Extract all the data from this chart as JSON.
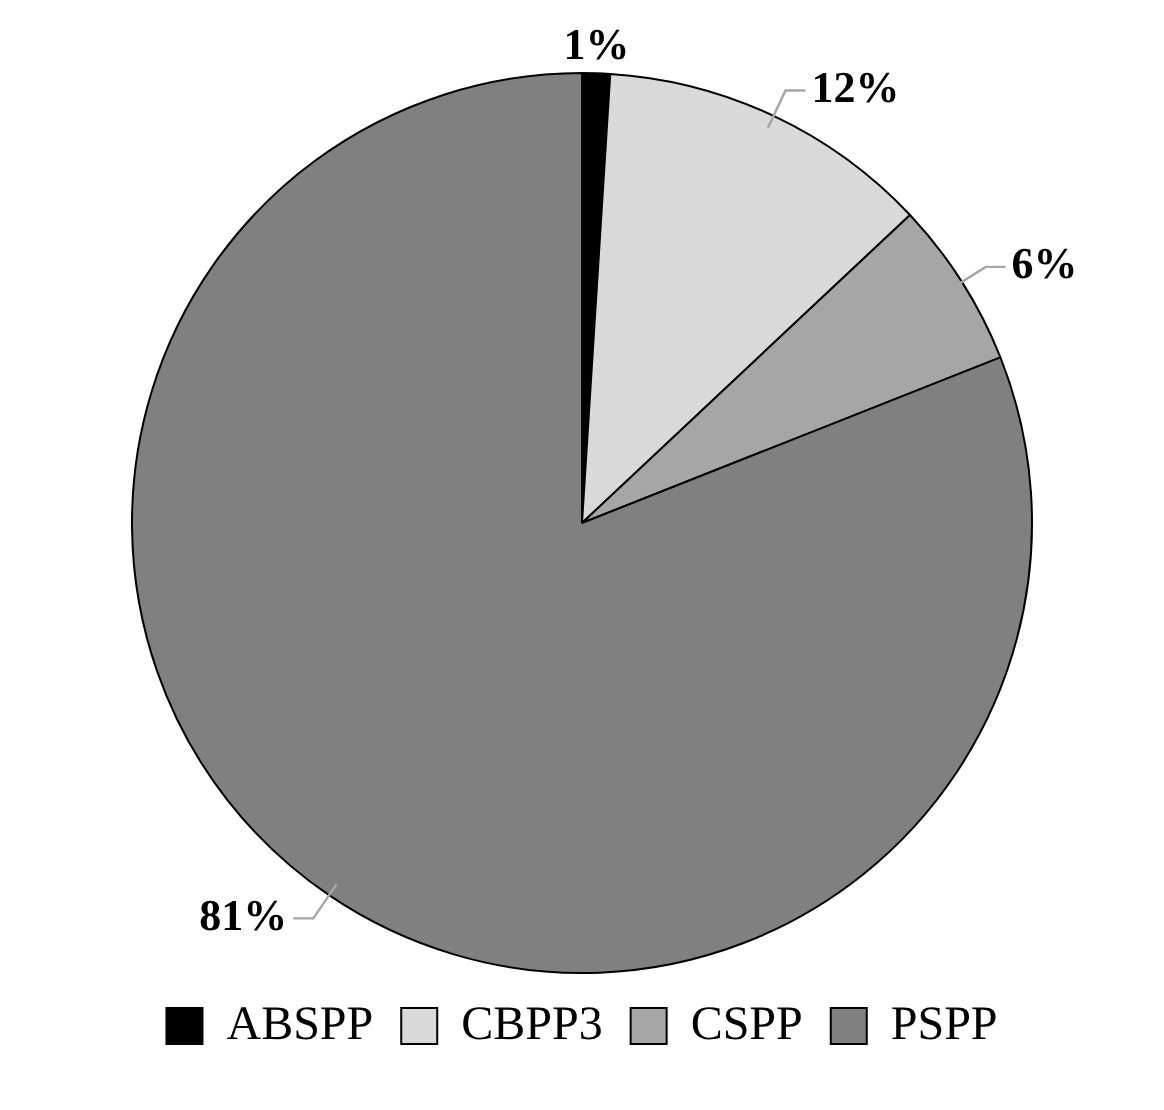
{
  "chart_data": {
    "type": "pie",
    "categories": [
      "ABSPP",
      "CBPP3",
      "CSPP",
      "PSPP"
    ],
    "values": [
      1,
      12,
      6,
      81
    ],
    "colors": [
      "#000000",
      "#d9d9d9",
      "#a6a6a6",
      "#808080"
    ],
    "value_labels": [
      "1%",
      "12%",
      "6%",
      "81%"
    ],
    "legend": "bottom"
  }
}
